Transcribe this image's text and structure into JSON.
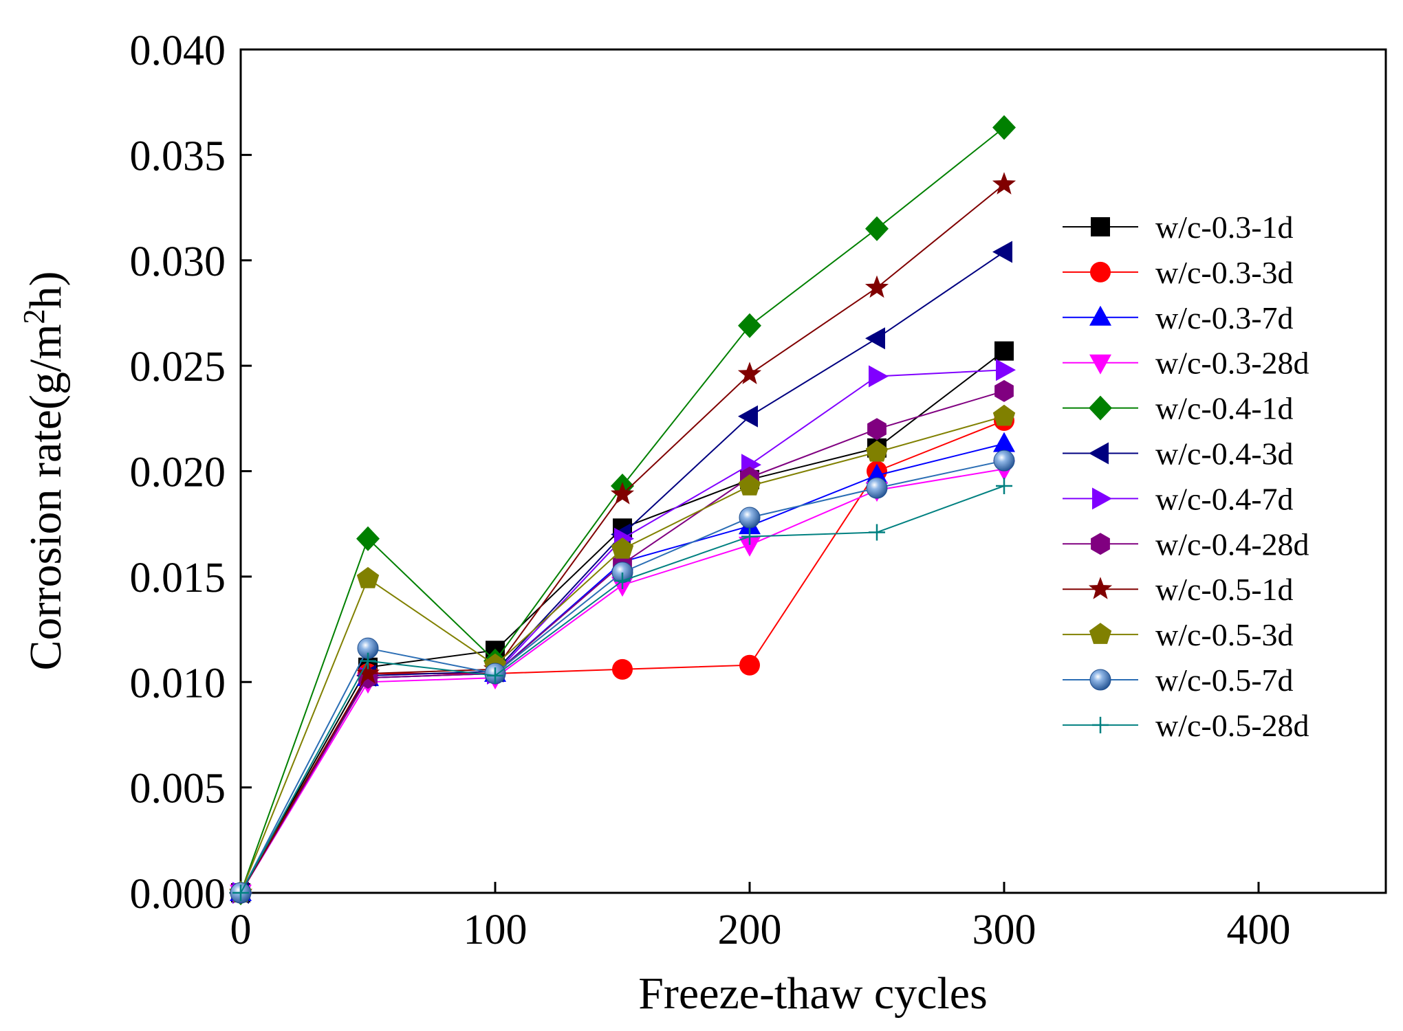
{
  "chart_data": {
    "type": "line",
    "xlabel": "Freeze-thaw cycles",
    "ylabel_main": "Corrosion rate(g/m",
    "ylabel_sup": "2",
    "ylabel_end": "h)",
    "xlim": [
      0,
      450
    ],
    "ylim": [
      0,
      0.04
    ],
    "x_ticks": [
      0,
      100,
      200,
      300,
      400
    ],
    "x_tick_labels": [
      "0",
      "100",
      "200",
      "300",
      "400"
    ],
    "y_ticks": [
      0,
      0.005,
      0.01,
      0.015,
      0.02,
      0.025,
      0.03,
      0.035,
      0.04
    ],
    "y_tick_labels": [
      "0.000",
      "0.005",
      "0.010",
      "0.015",
      "0.020",
      "0.025",
      "0.030",
      "0.035",
      "0.040"
    ],
    "grid": false,
    "legend_position": "right",
    "x": [
      0,
      50,
      100,
      150,
      200,
      250,
      300
    ],
    "series": [
      {
        "name": " w/c-0.3-1d",
        "color": "#000000",
        "marker": "square",
        "values": [
          0,
          0.0107,
          0.0115,
          0.0173,
          0.0196,
          0.0211,
          0.0257
        ]
      },
      {
        "name": "w/c-0.3-3d",
        "color": "#ff0000",
        "marker": "circle",
        "values": [
          0,
          0.0104,
          0.0104,
          0.0106,
          0.0108,
          0.02,
          0.0224
        ]
      },
      {
        "name": "w/c-0.3-7d",
        "color": "#0000ff",
        "marker": "triangle-up",
        "values": [
          0,
          0.0102,
          0.0104,
          0.0157,
          0.0174,
          0.0198,
          0.0213
        ]
      },
      {
        "name": "w/c-0.3-28d",
        "color": "#ff00ff",
        "marker": "triangle-down",
        "values": [
          0,
          0.01,
          0.0102,
          0.0146,
          0.0165,
          0.0191,
          0.0201
        ]
      },
      {
        "name": "w/c-0.4-1d",
        "color": "#008000",
        "marker": "diamond",
        "values": [
          0,
          0.0168,
          0.011,
          0.0193,
          0.0269,
          0.0315,
          0.0363
        ]
      },
      {
        "name": "w/c-0.4-3d",
        "color": "#000080",
        "marker": "triangle-left",
        "values": [
          0,
          0.0103,
          0.0105,
          0.017,
          0.0226,
          0.0263,
          0.0304
        ]
      },
      {
        "name": "w/c-0.4-7d",
        "color": "#8000ff",
        "marker": "triangle-right",
        "values": [
          0,
          0.0102,
          0.0104,
          0.0168,
          0.0203,
          0.0245,
          0.0248
        ]
      },
      {
        "name": "w/c-0.4-28d",
        "color": "#800080",
        "marker": "hexagon",
        "values": [
          0,
          0.0102,
          0.0104,
          0.0156,
          0.0197,
          0.022,
          0.0238
        ]
      },
      {
        "name": "w/c-0.5-1d",
        "color": "#800000",
        "marker": "star",
        "values": [
          0,
          0.0104,
          0.0106,
          0.0189,
          0.0246,
          0.0287,
          0.0336
        ]
      },
      {
        "name": "w/c-0.5-3d",
        "color": "#808000",
        "marker": "pentagon",
        "values": [
          0,
          0.0149,
          0.0108,
          0.0163,
          0.0193,
          0.0209,
          0.0226
        ]
      },
      {
        "name": "w/c-0.5-7d",
        "color": "#2a6db4",
        "marker": "sphere",
        "values": [
          0,
          0.0116,
          0.0104,
          0.0152,
          0.0178,
          0.0192,
          0.0205
        ]
      },
      {
        "name": "w/c-0.5-28d",
        "color": "#008080",
        "marker": "plus",
        "values": [
          0,
          0.011,
          0.0103,
          0.0148,
          0.0169,
          0.0171,
          0.0193
        ]
      }
    ]
  }
}
